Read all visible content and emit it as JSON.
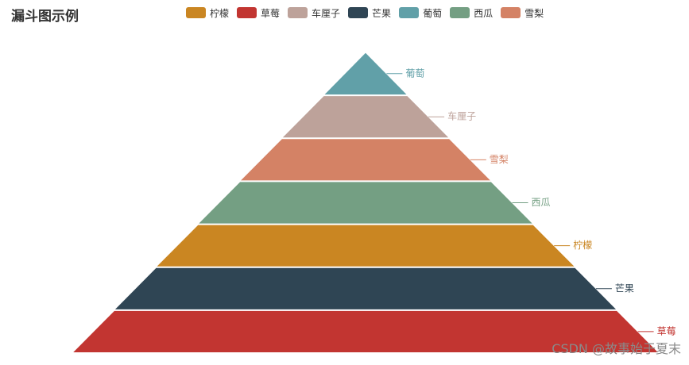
{
  "chart_data": {
    "type": "funnel",
    "title": "漏斗图示例",
    "legend_placement": "top-center",
    "sort": "ascending",
    "legend": [
      {
        "name": "柠檬",
        "color": "#ca8622"
      },
      {
        "name": "草莓",
        "color": "#c23531"
      },
      {
        "name": "车厘子",
        "color": "#bda29a"
      },
      {
        "name": "芒果",
        "color": "#2f4554"
      },
      {
        "name": "葡萄",
        "color": "#61a0a8"
      },
      {
        "name": "西瓜",
        "color": "#749f83"
      },
      {
        "name": "雪梨",
        "color": "#d48265"
      }
    ],
    "stages": [
      {
        "name": "葡萄",
        "color": "#61a0a8",
        "rank": 1
      },
      {
        "name": "车厘子",
        "color": "#bda29a",
        "rank": 2
      },
      {
        "name": "雪梨",
        "color": "#d48265",
        "rank": 3
      },
      {
        "name": "西瓜",
        "color": "#749f83",
        "rank": 4
      },
      {
        "name": "柠檬",
        "color": "#ca8622",
        "rank": 5
      },
      {
        "name": "芒果",
        "color": "#2f4554",
        "rank": 6
      },
      {
        "name": "草莓",
        "color": "#c23531",
        "rank": 7
      }
    ]
  },
  "watermark": "CSDN @故事始于夏末"
}
